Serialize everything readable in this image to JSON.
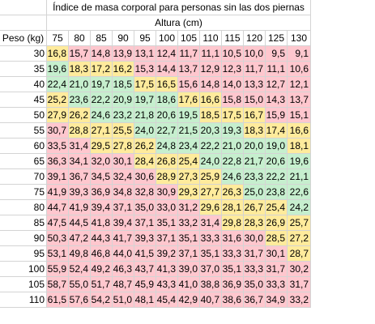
{
  "title": "Índice de masa corporal para personas sin las dos piernas",
  "subtitle": "Altura (cm)",
  "row_header": "Peso (kg)",
  "heights": [
    "75",
    "80",
    "85",
    "90",
    "95",
    "100",
    "105",
    "110",
    "115",
    "120",
    "125",
    "130"
  ],
  "colors": {
    "red": "#ffc7ce",
    "yellow": "#ffeb9c",
    "green": "#c6efce"
  },
  "rows": [
    {
      "peso": "30",
      "values": [
        "16,8",
        "15,7",
        "14,8",
        "13,9",
        "13,1",
        "12,4",
        "11,7",
        "11,1",
        "10,5",
        "10,0",
        "9,5",
        "9,1"
      ],
      "colors": "YRRRRRRRRRRR"
    },
    {
      "peso": "35",
      "values": [
        "19,6",
        "18,3",
        "17,2",
        "16,2",
        "15,3",
        "14,4",
        "13,7",
        "12,9",
        "12,3",
        "11,7",
        "11,1",
        "10,6"
      ],
      "colors": "GYYYRRRRRRRR"
    },
    {
      "peso": "40",
      "values": [
        "22,4",
        "21,0",
        "19,7",
        "18,5",
        "17,5",
        "16,5",
        "15,6",
        "14,8",
        "14,0",
        "13,3",
        "12,7",
        "12,1"
      ],
      "colors": "GGGGYYRRRRRR"
    },
    {
      "peso": "45",
      "values": [
        "25,2",
        "23,6",
        "22,2",
        "20,9",
        "19,7",
        "18,6",
        "17,6",
        "16,6",
        "15,8",
        "15,0",
        "14,3",
        "13,7"
      ],
      "colors": "YGGGGGYYRRRR"
    },
    {
      "peso": "50",
      "values": [
        "27,9",
        "26,2",
        "24,6",
        "23,2",
        "21,8",
        "20,6",
        "19,5",
        "18,5",
        "17,5",
        "16,7",
        "15,9",
        "15,1"
      ],
      "colors": "YYGGGGGYYYRR"
    },
    {
      "peso": "55",
      "values": [
        "30,7",
        "28,8",
        "27,1",
        "25,5",
        "24,0",
        "22,7",
        "21,5",
        "20,3",
        "19,3",
        "18,3",
        "17,4",
        "16,6"
      ],
      "colors": "RYYYGGGGGYYY"
    },
    {
      "peso": "60",
      "values": [
        "33,5",
        "31,4",
        "29,5",
        "27,8",
        "26,2",
        "24,8",
        "23,4",
        "22,2",
        "21,0",
        "20,0",
        "19,0",
        "18,1"
      ],
      "colors": "RRYYYGGGGGGY"
    },
    {
      "peso": "65",
      "values": [
        "36,3",
        "34,1",
        "32,0",
        "30,1",
        "28,4",
        "26,8",
        "25,4",
        "24,0",
        "22,8",
        "21,7",
        "20,6",
        "19,6"
      ],
      "colors": "RRRRYYYGGGGG"
    },
    {
      "peso": "70",
      "values": [
        "39,1",
        "36,7",
        "34,5",
        "32,4",
        "30,6",
        "28,9",
        "27,3",
        "25,9",
        "24,6",
        "23,3",
        "22,2",
        "21,1"
      ],
      "colors": "RRRRRYYYGGGG"
    },
    {
      "peso": "75",
      "values": [
        "41,9",
        "39,3",
        "36,9",
        "34,8",
        "32,8",
        "30,9",
        "29,3",
        "27,7",
        "26,3",
        "25,0",
        "23,8",
        "22,6"
      ],
      "colors": "RRRRRRYYYGGG"
    },
    {
      "peso": "80",
      "values": [
        "44,7",
        "41,9",
        "39,4",
        "37,1",
        "35,0",
        "33,0",
        "31,2",
        "29,6",
        "28,1",
        "26,7",
        "25,4",
        "24,2"
      ],
      "colors": "RRRRRRRYYYYG"
    },
    {
      "peso": "85",
      "values": [
        "47,5",
        "44,5",
        "41,8",
        "39,4",
        "37,1",
        "35,1",
        "33,2",
        "31,4",
        "29,8",
        "28,3",
        "26,9",
        "25,7"
      ],
      "colors": "RRRRRRRRYYYY"
    },
    {
      "peso": "90",
      "values": [
        "50,3",
        "47,2",
        "44,3",
        "41,7",
        "39,3",
        "37,1",
        "35,1",
        "33,3",
        "31,6",
        "30,0",
        "28,5",
        "27,2"
      ],
      "colors": "RRRRRRRRRRYY"
    },
    {
      "peso": "95",
      "values": [
        "53,1",
        "49,8",
        "46,8",
        "44,0",
        "41,5",
        "39,2",
        "37,1",
        "35,1",
        "33,3",
        "31,7",
        "30,1",
        "28,7"
      ],
      "colors": "RRRRRRRRRRRY"
    },
    {
      "peso": "100",
      "values": [
        "55,9",
        "52,4",
        "49,2",
        "46,3",
        "43,7",
        "41,3",
        "39,0",
        "37,0",
        "35,1",
        "33,3",
        "31,7",
        "30,2"
      ],
      "colors": "RRRRRRRRRRRR"
    },
    {
      "peso": "105",
      "values": [
        "58,7",
        "55,0",
        "51,7",
        "48,7",
        "45,9",
        "43,3",
        "41,0",
        "38,8",
        "36,9",
        "35,0",
        "33,3",
        "31,7"
      ],
      "colors": "RRRRRRRRRRRR"
    },
    {
      "peso": "110",
      "values": [
        "61,5",
        "57,6",
        "54,2",
        "51,0",
        "48,1",
        "45,4",
        "42,9",
        "40,7",
        "38,6",
        "36,7",
        "34,9",
        "33,2"
      ],
      "colors": "RRRRRRRRRRRR"
    }
  ]
}
